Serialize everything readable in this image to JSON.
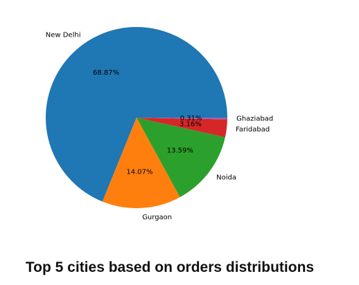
{
  "chart_data": {
    "type": "pie",
    "title": "Top 5 cities based on orders distributions",
    "slices": [
      {
        "label": "New Delhi",
        "value": 68.87,
        "pct_label": "68.87%",
        "color": "#1f77b4"
      },
      {
        "label": "Gurgaon",
        "value": 14.07,
        "pct_label": "14.07%",
        "color": "#ff7f0e"
      },
      {
        "label": "Noida",
        "value": 13.59,
        "pct_label": "13.59%",
        "color": "#2ca02c"
      },
      {
        "label": "Faridabad",
        "value": 3.16,
        "pct_label": "3.16%",
        "color": "#d62728"
      },
      {
        "label": "Ghaziabad",
        "value": 0.31,
        "pct_label": "0.31%",
        "color": "#9467bd"
      }
    ]
  }
}
